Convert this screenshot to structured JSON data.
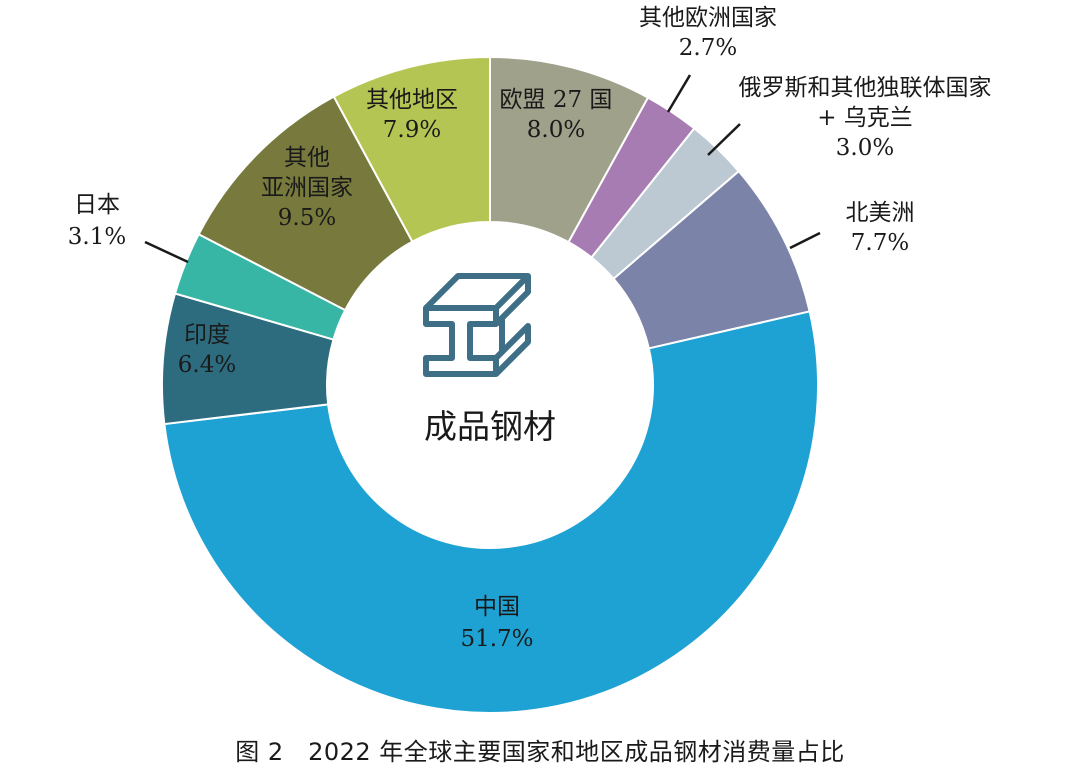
{
  "chart_data": {
    "type": "pie",
    "donut": true,
    "center_label": "成品钢材",
    "center_icon": "steel-beam-icon",
    "caption": "图 2　2022 年全球主要国家和地区成品钢材消费量占比",
    "unit": "%",
    "slices": [
      {
        "label_lines": [
          "欧盟 27 国"
        ],
        "label": "欧盟 27 国",
        "value": 8.0,
        "value_text": "8.0%",
        "color": "#9fa18a"
      },
      {
        "label_lines": [
          "其他欧洲国家"
        ],
        "label": "其他欧洲国家",
        "value": 2.7,
        "value_text": "2.7%",
        "color": "#a77cb3"
      },
      {
        "label_lines": [
          "俄罗斯和其他独联体国家",
          "+ 乌克兰"
        ],
        "label": "俄罗斯和其他独联体国家 + 乌克兰",
        "value": 3.0,
        "value_text": "3.0%",
        "color": "#bcc9d3"
      },
      {
        "label_lines": [
          "北美洲"
        ],
        "label": "北美洲",
        "value": 7.7,
        "value_text": "7.7%",
        "color": "#7b83a9"
      },
      {
        "label_lines": [
          "中国"
        ],
        "label": "中国",
        "value": 51.7,
        "value_text": "51.7%",
        "color": "#1ea2d4"
      },
      {
        "label_lines": [
          "印度"
        ],
        "label": "印度",
        "value": 6.4,
        "value_text": "6.4%",
        "color": "#2d6c7f"
      },
      {
        "label_lines": [
          "日本"
        ],
        "label": "日本",
        "value": 3.1,
        "value_text": "3.1%",
        "color": "#37b6a6"
      },
      {
        "label_lines": [
          "其他",
          "亚洲国家"
        ],
        "label": "其他亚洲国家",
        "value": 9.5,
        "value_text": "9.5%",
        "color": "#777a3c"
      },
      {
        "label_lines": [
          "其他地区"
        ],
        "label": "其他地区",
        "value": 7.9,
        "value_text": "7.9%",
        "color": "#b5c554"
      }
    ]
  }
}
